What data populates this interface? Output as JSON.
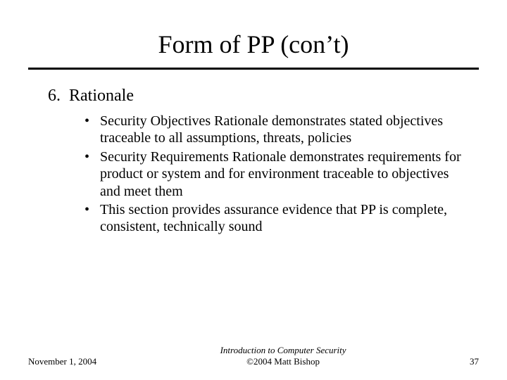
{
  "title": "Form of PP (con’t)",
  "list": {
    "number": "6.",
    "label": "Rationale",
    "bullets": [
      "Security Objectives Rationale demonstrates stated objectives traceable to all assumptions, threats, policies",
      "Security Requirements Rationale demonstrates requirements for product or system and for environment traceable to objectives and meet them",
      "This section provides assurance evidence that PP is complete, consistent, technically sound"
    ]
  },
  "footer": {
    "date": "November 1, 2004",
    "center_line1": "Introduction to Computer Security",
    "center_line2": "©2004 Matt Bishop",
    "page": "37"
  },
  "style": {
    "background_color": "#ffffff",
    "text_color": "#000000",
    "rule_color": "#000000",
    "title_fontsize": 36,
    "top_item_fontsize": 24,
    "bullet_fontsize": 20,
    "footer_fontsize": 13,
    "font_family": "Times New Roman"
  }
}
